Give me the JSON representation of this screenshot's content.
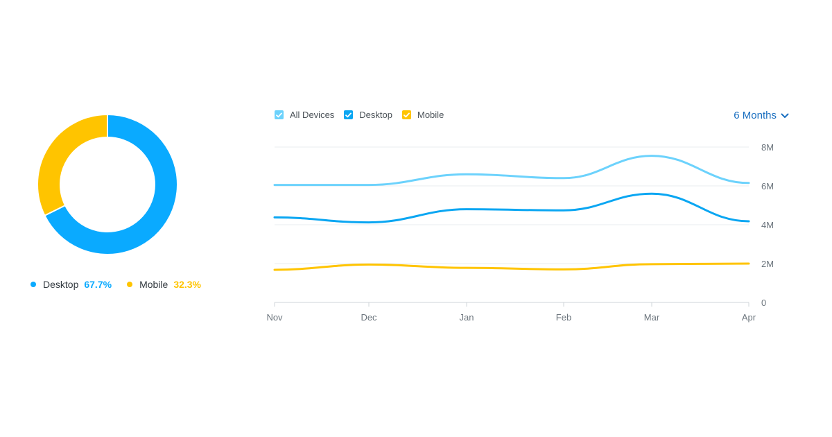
{
  "chart_data": [
    {
      "type": "pie",
      "donut": true,
      "slices": [
        {
          "name": "Desktop",
          "value": 67.7,
          "label": "67.7%",
          "color": "#0aaaff"
        },
        {
          "name": "Mobile",
          "value": 32.3,
          "label": "32.3%",
          "color": "#ffc400"
        }
      ]
    },
    {
      "type": "line",
      "x": [
        "Nov",
        "Dec",
        "Jan",
        "Feb",
        "Mar",
        "Apr"
      ],
      "ylim": [
        0,
        8000000
      ],
      "y_ticks": [
        {
          "value": 0,
          "label": "0"
        },
        {
          "value": 2000000,
          "label": "2M"
        },
        {
          "value": 4000000,
          "label": "4M"
        },
        {
          "value": 6000000,
          "label": "6M"
        },
        {
          "value": 8000000,
          "label": "8M"
        }
      ],
      "grid": true,
      "series": [
        {
          "name": "All Devices",
          "color": "#6cd2fc",
          "checked": true,
          "values": [
            6050000,
            6050000,
            6600000,
            6400000,
            7550000,
            6150000
          ]
        },
        {
          "name": "Desktop",
          "color": "#0aa6f2",
          "checked": true,
          "values": [
            4380000,
            4120000,
            4800000,
            4740000,
            5600000,
            4180000
          ]
        },
        {
          "name": "Mobile",
          "color": "#ffc400",
          "checked": true,
          "values": [
            1680000,
            1950000,
            1780000,
            1700000,
            1970000,
            2000000
          ]
        }
      ]
    }
  ],
  "controls": {
    "range_label": "6 Months",
    "range_icon": "chevron-down-icon",
    "checkbox_icon": "check-icon"
  }
}
